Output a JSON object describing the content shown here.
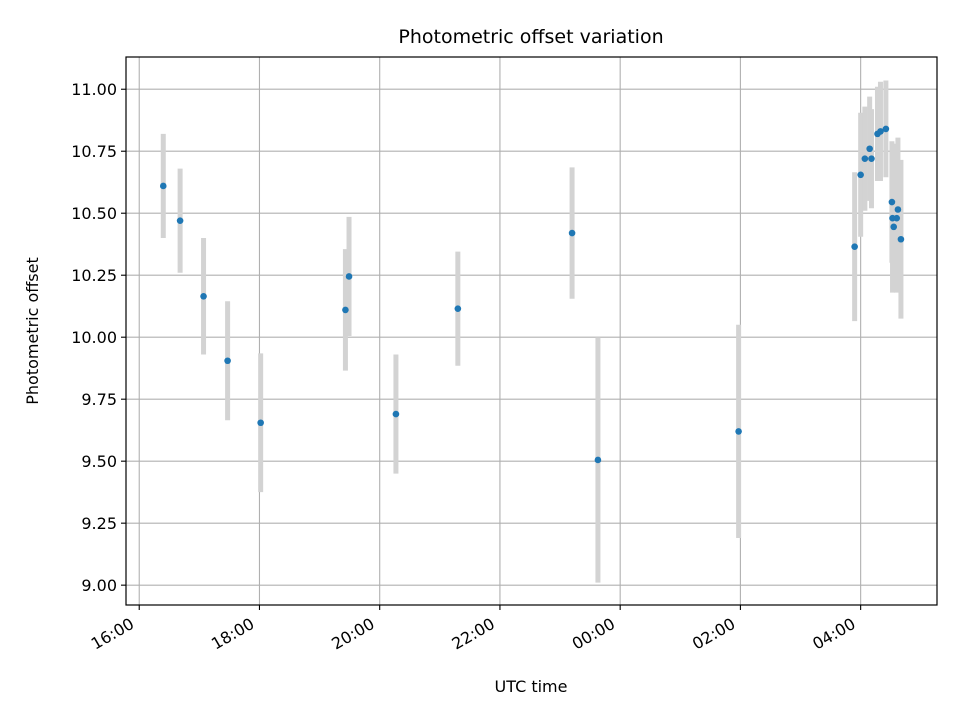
{
  "chart_data": {
    "type": "scatter",
    "title": "Photometric offset variation",
    "xlabel": "UTC time",
    "ylabel": "Photometric offset",
    "x_tick_labels": [
      "16:00",
      "18:00",
      "20:00",
      "22:00",
      "00:00",
      "02:00",
      "04:00"
    ],
    "y_tick_labels": [
      "9.00",
      "9.25",
      "9.50",
      "9.75",
      "10.00",
      "10.25",
      "10.50",
      "10.75",
      "11.00"
    ],
    "y_ticks": [
      9.0,
      9.25,
      9.5,
      9.75,
      10.0,
      10.25,
      10.5,
      10.75,
      11.0
    ],
    "x_tick_hours": [
      0,
      2,
      4,
      6,
      8,
      10,
      12
    ],
    "x_axis_start": "16:00",
    "xlim_hours": [
      -0.22,
      13.27
    ],
    "ylim": [
      8.92,
      11.13
    ],
    "grid": true,
    "series": [
      {
        "marker_color": "#1f77b4",
        "errorbar_color": "#d3d3d3",
        "points": [
          {
            "t": 0.4,
            "y": 10.61,
            "err": 0.21
          },
          {
            "t": 0.68,
            "y": 10.47,
            "err": 0.21
          },
          {
            "t": 1.07,
            "y": 10.165,
            "err": 0.235
          },
          {
            "t": 1.47,
            "y": 9.905,
            "err": 0.24
          },
          {
            "t": 2.02,
            "y": 9.655,
            "err": 0.28
          },
          {
            "t": 3.43,
            "y": 10.11,
            "err": 0.245
          },
          {
            "t": 3.49,
            "y": 10.245,
            "err": 0.24
          },
          {
            "t": 4.27,
            "y": 9.69,
            "err": 0.24
          },
          {
            "t": 5.3,
            "y": 10.115,
            "err": 0.23
          },
          {
            "t": 7.2,
            "y": 10.42,
            "err": 0.265
          },
          {
            "t": 7.63,
            "y": 9.505,
            "err": 0.495
          },
          {
            "t": 9.97,
            "y": 9.62,
            "err": 0.43
          },
          {
            "t": 11.9,
            "y": 10.365,
            "err": 0.3
          },
          {
            "t": 12.0,
            "y": 10.655,
            "err": 0.25
          },
          {
            "t": 12.07,
            "y": 10.72,
            "err": 0.21
          },
          {
            "t": 12.15,
            "y": 10.76,
            "err": 0.21
          },
          {
            "t": 12.18,
            "y": 10.72,
            "err": 0.2
          },
          {
            "t": 12.28,
            "y": 10.82,
            "err": 0.19
          },
          {
            "t": 12.33,
            "y": 10.83,
            "err": 0.2
          },
          {
            "t": 12.42,
            "y": 10.84,
            "err": 0.195
          },
          {
            "t": 12.52,
            "y": 10.545,
            "err": 0.245
          },
          {
            "t": 12.53,
            "y": 10.48,
            "err": 0.3
          },
          {
            "t": 12.55,
            "y": 10.445,
            "err": 0.25
          },
          {
            "t": 12.6,
            "y": 10.48,
            "err": 0.3
          },
          {
            "t": 12.62,
            "y": 10.515,
            "err": 0.29
          },
          {
            "t": 12.67,
            "y": 10.395,
            "err": 0.32
          }
        ]
      }
    ]
  }
}
